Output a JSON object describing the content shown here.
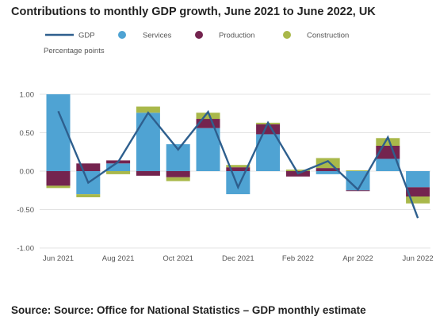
{
  "title": "Contributions to monthly GDP growth, June 2021 to June 2022, UK",
  "source": "Source: Source: Office for National Statistics – GDP monthly estimate",
  "colors": {
    "GDP": "#2e5f8e",
    "Services": "#4fa3d3",
    "Production": "#74244f",
    "Construction": "#a9b84a",
    "grid": "#e3e3e3"
  },
  "chart_data": {
    "type": "bar",
    "stacked": true,
    "title": "Contributions to monthly GDP growth, June 2021 to June 2022, UK",
    "xlabel": "",
    "ylabel": "Percentage points",
    "ylim": [
      -1.0,
      1.0
    ],
    "yticks": [
      "1.00",
      "0.50",
      "0.00",
      "-0.50",
      "-1.00"
    ],
    "ytick_values": [
      1.0,
      0.5,
      0.0,
      -0.5,
      -1.0
    ],
    "grid": true,
    "legend_position": "top",
    "categories": [
      "Jun 2021",
      "Jul 2021",
      "Aug 2021",
      "Sep 2021",
      "Oct 2021",
      "Nov 2021",
      "Dec 2021",
      "Jan 2022",
      "Feb 2022",
      "Mar 2022",
      "Apr 2022",
      "May 2022",
      "Jun 2022"
    ],
    "xtick_labels": [
      "Jun 2021",
      "Aug 2021",
      "Oct 2021",
      "Dec 2021",
      "Feb 2022",
      "Apr 2022",
      "Jun 2022"
    ],
    "xtick_indices": [
      0,
      2,
      4,
      6,
      8,
      10,
      12
    ],
    "legend": [
      "GDP",
      "Services",
      "Production",
      "Construction"
    ],
    "series": [
      {
        "name": "Services",
        "type": "bar",
        "values": [
          1.0,
          -0.3,
          0.1,
          0.76,
          0.35,
          0.56,
          -0.3,
          0.48,
          0.0,
          -0.04,
          -0.25,
          0.16,
          -0.21
        ]
      },
      {
        "name": "Production",
        "type": "bar",
        "values": [
          -0.19,
          0.1,
          0.04,
          -0.06,
          -0.08,
          0.12,
          0.05,
          0.13,
          -0.07,
          0.04,
          -0.01,
          0.17,
          -0.12
        ]
      },
      {
        "name": "Construction",
        "type": "bar",
        "values": [
          -0.03,
          -0.04,
          -0.04,
          0.08,
          -0.05,
          0.08,
          0.03,
          0.02,
          0.02,
          0.13,
          0.01,
          0.1,
          -0.09
        ]
      },
      {
        "name": "GDP",
        "type": "line",
        "values": [
          0.78,
          -0.15,
          0.12,
          0.76,
          0.28,
          0.77,
          -0.21,
          0.63,
          -0.03,
          0.13,
          -0.24,
          0.44,
          -0.61
        ]
      }
    ]
  }
}
